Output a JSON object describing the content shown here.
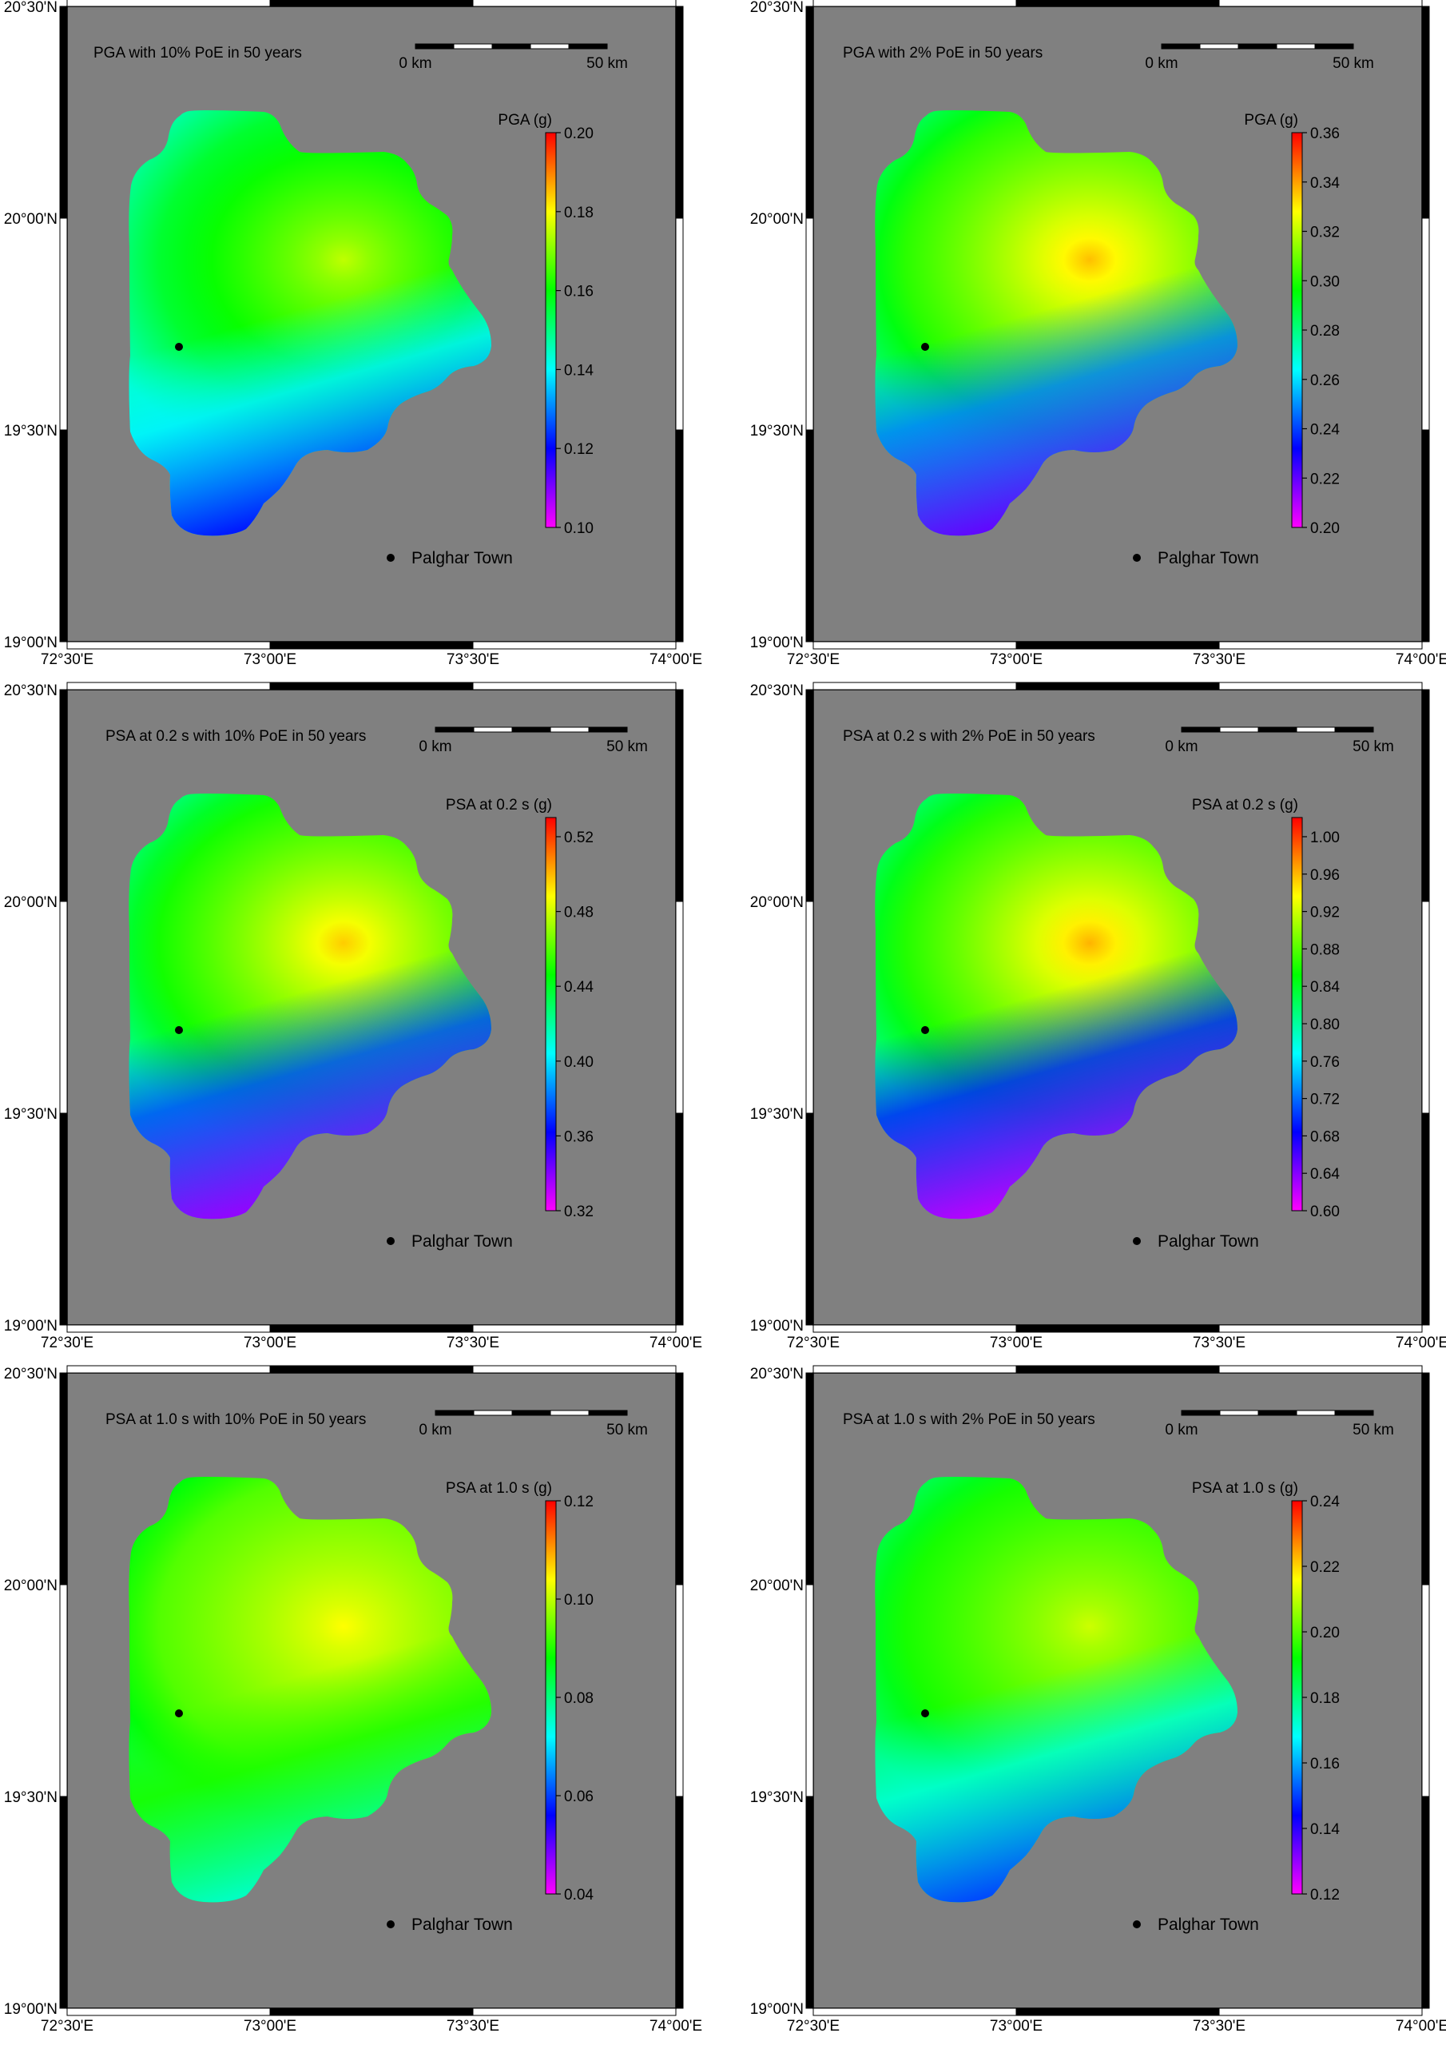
{
  "axes": {
    "x_ticks": [
      "72°30'E",
      "73°00'E",
      "73°30'E",
      "74°00'E"
    ],
    "y_ticks": [
      "20°30'N",
      "20°00'N",
      "19°30'N",
      "19°00'N"
    ]
  },
  "scalebar": {
    "start_label": "0 km",
    "end_label": "50 km"
  },
  "legend": {
    "town_label": "Palghar Town"
  },
  "colors": {
    "map_background": "#808080",
    "frame": "#000000",
    "town_marker": "#000000",
    "palette": [
      "#ff00ff",
      "#0000ff",
      "#00ffff",
      "#00ff00",
      "#ffff00",
      "#ff0000"
    ]
  },
  "panels": [
    {
      "title": "PGA with 10% PoE in 50  years",
      "colorbar": {
        "title": "PGA (g)",
        "ticks": [
          "0.20",
          "0.18",
          "0.16",
          "0.14",
          "0.12",
          "0.10"
        ]
      },
      "field": {
        "peak": 0.75,
        "base": 0.5,
        "south_low": 0.21
      }
    },
    {
      "title": "PGA with 2% PoE in 50  years",
      "colorbar": {
        "title": "PGA (g)",
        "ticks": [
          "0.36",
          "0.34",
          "0.32",
          "0.30",
          "0.28",
          "0.26",
          "0.24",
          "0.22",
          "0.20"
        ]
      },
      "field": {
        "peak": 0.85,
        "base": 0.56,
        "south_low": 0.12
      }
    },
    {
      "title": "PSA at 0.2 s with 10% PoE in 50  years",
      "colorbar": {
        "title": "PSA at 0.2 s (g)",
        "ticks": [
          "0.52",
          "0.48",
          "0.44",
          "0.40",
          "0.36",
          "0.32"
        ]
      },
      "field": {
        "peak": 0.84,
        "base": 0.54,
        "south_low": 0.08
      }
    },
    {
      "title": "PSA at 0.2 s with 2% PoE in 50  years",
      "colorbar": {
        "title": "PSA at 0.2 s (g)",
        "ticks": [
          "1.00",
          "0.96",
          "0.92",
          "0.88",
          "0.84",
          "0.80",
          "0.76",
          "0.72",
          "0.68",
          "0.64",
          "0.60"
        ]
      },
      "field": {
        "peak": 0.86,
        "base": 0.55,
        "south_low": 0.05
      }
    },
    {
      "title": "PSA at 1.0 s with 10% PoE in 50  years",
      "colorbar": {
        "title": "PSA at 1.0 s (g)",
        "ticks": [
          "0.12",
          "0.10",
          "0.08",
          "0.06",
          "0.04"
        ]
      },
      "field": {
        "peak": 0.8,
        "base": 0.62,
        "south_low": 0.44
      }
    },
    {
      "title": "PSA at 1.0 s with 2% PoE in 50  years",
      "colorbar": {
        "title": "PSA at 1.0 s (g)",
        "ticks": [
          "0.24",
          "0.22",
          "0.20",
          "0.18",
          "0.16",
          "0.14",
          "0.12"
        ]
      },
      "field": {
        "peak": 0.76,
        "base": 0.57,
        "south_low": 0.25
      }
    }
  ]
}
